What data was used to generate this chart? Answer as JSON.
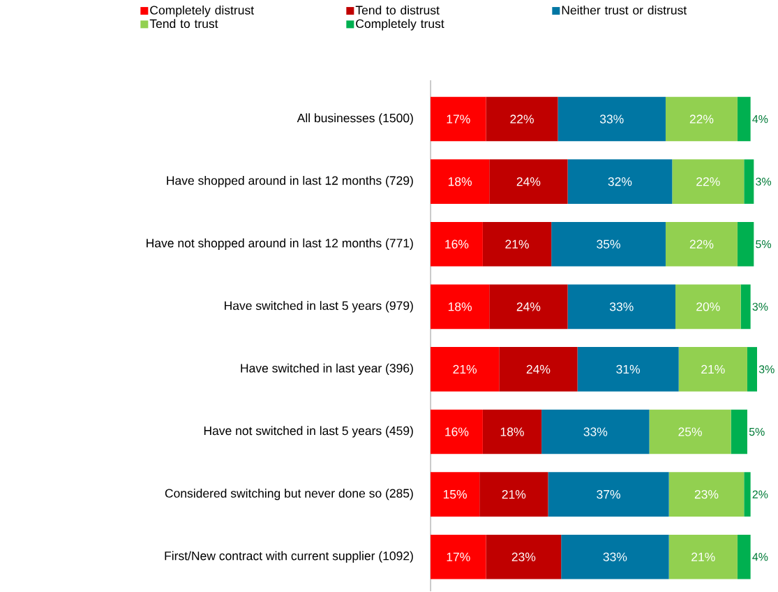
{
  "chart_data": {
    "type": "bar",
    "orientation": "horizontal",
    "stacked": true,
    "legend": "top",
    "categories": [
      "All businesses (1500)",
      "Have shopped around in last 12 months (729)",
      "Have not shopped around in last 12 months (771)",
      "Have switched in last 5 years (979)",
      "Have switched in last year (396)",
      "Have not switched in last 5 years (459)",
      "Considered switching but never done so (285)",
      "First/New contract with current supplier (1092)"
    ],
    "series": [
      {
        "name": "Completely distrust",
        "color": "#ff0000",
        "values": [
          17,
          18,
          16,
          18,
          21,
          16,
          15,
          17
        ],
        "value_labels": [
          "17%",
          "18%",
          "16%",
          "18%",
          "21%",
          "16%",
          "15%",
          "17%"
        ]
      },
      {
        "name": "Tend to distrust",
        "color": "#c00000",
        "values": [
          22,
          24,
          21,
          24,
          24,
          18,
          21,
          23
        ],
        "value_labels": [
          "22%",
          "24%",
          "21%",
          "24%",
          "24%",
          "18%",
          "21%",
          "23%"
        ]
      },
      {
        "name": "Neither trust or distrust",
        "color": "#0076a3",
        "values": [
          33,
          32,
          35,
          33,
          31,
          33,
          37,
          33
        ],
        "value_labels": [
          "33%",
          "32%",
          "35%",
          "33%",
          "31%",
          "33%",
          "37%",
          "33%"
        ]
      },
      {
        "name": "Tend to trust",
        "color": "#92d050",
        "values": [
          22,
          22,
          22,
          20,
          21,
          25,
          23,
          21
        ],
        "value_labels": [
          "22%",
          "22%",
          "22%",
          "20%",
          "21%",
          "25%",
          "23%",
          "21%"
        ]
      },
      {
        "name": "Completely trust",
        "color": "#00b050",
        "values": [
          4,
          3,
          5,
          3,
          3,
          5,
          2,
          4
        ],
        "value_labels": [
          "4%",
          "3%",
          "5%",
          "3%",
          "3%",
          "5%",
          "2%",
          "4%"
        ]
      }
    ]
  }
}
